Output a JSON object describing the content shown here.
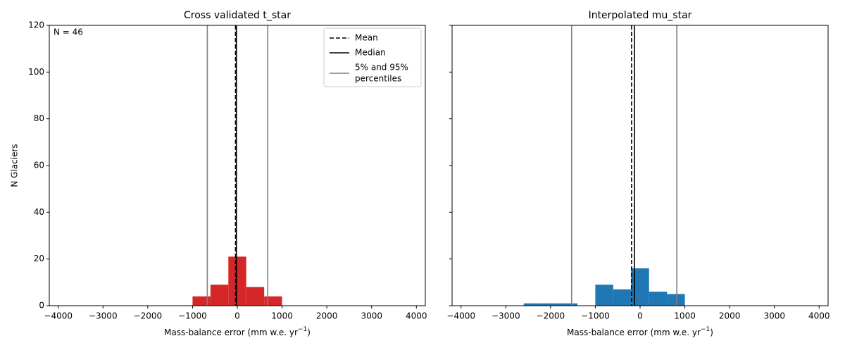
{
  "chart_data": [
    {
      "type": "histogram",
      "title": "Cross validated t_star",
      "xlabel": "Mass-balance error (mm w.e. yr",
      "xlabel_sup": "−1",
      "xlabel_end": ")",
      "ylabel": "N Glaciers",
      "annotation": "N = 46",
      "bins": [
        -1000,
        -600,
        -200,
        200,
        600,
        1000
      ],
      "values": [
        4,
        9,
        21,
        8,
        4
      ],
      "color": "#d62728",
      "xlim": [
        -4200,
        4200
      ],
      "ylim": [
        0,
        120
      ],
      "xticks": [
        {
          "value": -4000,
          "label": "−4000"
        },
        {
          "value": -3000,
          "label": "−3000"
        },
        {
          "value": -2000,
          "label": "−2000"
        },
        {
          "value": -1000,
          "label": "−1000"
        },
        0,
        1000,
        2000,
        3000,
        4000
      ],
      "yticks": [
        0,
        20,
        40,
        60,
        80,
        100,
        120
      ],
      "show_ytick_labels": true,
      "vlines": [
        {
          "value": -40,
          "color": "#000000",
          "style": "dashed"
        },
        {
          "value": -20,
          "color": "#000000",
          "style": "solid"
        },
        {
          "value": -670,
          "color": "#808080",
          "style": "solid"
        },
        {
          "value": 680,
          "color": "#808080",
          "style": "solid"
        }
      ],
      "legend": {
        "loc": "upper right",
        "entries": [
          {
            "lines": [
              "Mean"
            ],
            "color": "#000000",
            "style": "dashed"
          },
          {
            "lines": [
              "Median"
            ],
            "color": "#000000",
            "style": "solid"
          },
          {
            "lines": [
              "5% and 95%",
              "percentiles"
            ],
            "color": "#808080",
            "style": "solid"
          }
        ]
      }
    },
    {
      "type": "histogram",
      "title": "Interpolated mu_star",
      "xlabel": "Mass-balance error (mm w.e. yr",
      "xlabel_sup": "−1",
      "xlabel_end": ")",
      "bins": [
        -2600,
        -2200,
        -1800,
        -1400,
        -1000,
        -600,
        -200,
        200,
        600,
        1000
      ],
      "values": [
        1,
        1,
        1,
        0,
        9,
        7,
        16,
        6,
        5
      ],
      "color": "#1f77b4",
      "xlim": [
        -4200,
        4200
      ],
      "ylim": [
        0,
        120
      ],
      "xticks": [
        {
          "value": -4000,
          "label": "−4000"
        },
        {
          "value": -3000,
          "label": "−3000"
        },
        {
          "value": -2000,
          "label": "−2000"
        },
        {
          "value": -1000,
          "label": "−1000"
        },
        0,
        1000,
        2000,
        3000,
        4000
      ],
      "yticks": [
        0,
        20,
        40,
        60,
        80,
        100,
        120
      ],
      "show_ytick_labels": false,
      "vlines": [
        {
          "value": -190,
          "color": "#000000",
          "style": "dashed"
        },
        {
          "value": -125,
          "color": "#000000",
          "style": "solid"
        },
        {
          "value": -1530,
          "color": "#808080",
          "style": "solid"
        },
        {
          "value": 820,
          "color": "#808080",
          "style": "solid"
        }
      ]
    }
  ]
}
